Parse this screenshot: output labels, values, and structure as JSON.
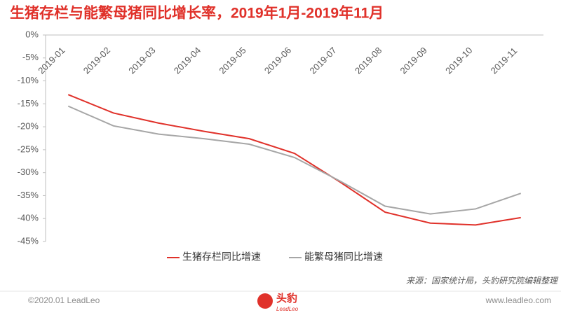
{
  "chart_data": {
    "type": "line",
    "title": "生猪存栏与能繁母猪同比增长率，2019年1月-2019年11月",
    "categories": [
      "2019-01",
      "2019-02",
      "2019-03",
      "2019-04",
      "2019-05",
      "2019-06",
      "2019-07",
      "2019-08",
      "2019-09",
      "2019-10",
      "2019-11"
    ],
    "series": [
      {
        "name": "生猪存栏同比增速",
        "color": "#e0312a",
        "values": [
          -13.0,
          -17.0,
          -19.2,
          -21.0,
          -22.6,
          -25.8,
          -32.0,
          -38.6,
          -41.0,
          -41.4,
          -39.8
        ]
      },
      {
        "name": "能繁母猪同比增速",
        "color": "#a6a6a6",
        "values": [
          -15.5,
          -19.8,
          -21.6,
          -22.6,
          -23.8,
          -26.7,
          -31.8,
          -37.3,
          -39.0,
          -37.9,
          -34.5
        ]
      }
    ],
    "ylim": [
      -45,
      0
    ],
    "yticks": [
      {
        "value": 0,
        "label": "0%"
      },
      {
        "value": -5,
        "label": "-5%"
      },
      {
        "value": -10,
        "label": "-10%"
      },
      {
        "value": -15,
        "label": "-15%"
      },
      {
        "value": -20,
        "label": "-20%"
      },
      {
        "value": -25,
        "label": "-25%"
      },
      {
        "value": -30,
        "label": "-30%"
      },
      {
        "value": -35,
        "label": "-35%"
      },
      {
        "value": -40,
        "label": "-40%"
      },
      {
        "value": -45,
        "label": "-45%"
      }
    ],
    "legend": "bottom",
    "source": "来源：国家统计局，头豹研究院编辑整理"
  },
  "footer": {
    "copyright": "©2020.01 LeadLeo",
    "logo": "头豹",
    "logo_sub": "LeadLeo",
    "website": "www.leadleo.com"
  }
}
